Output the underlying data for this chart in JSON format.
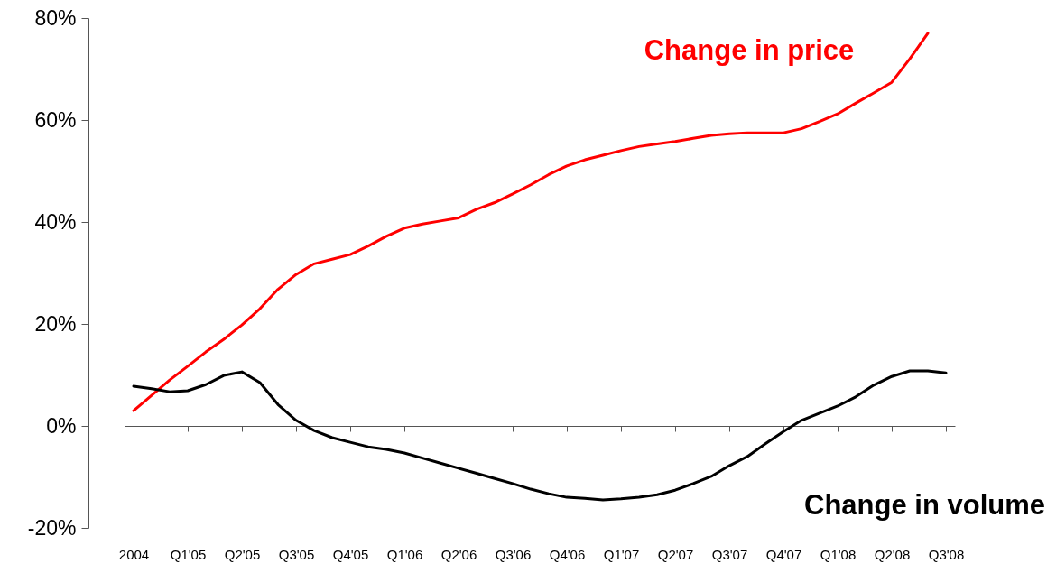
{
  "chart_data": {
    "type": "line",
    "categories": [
      "2004",
      null,
      null,
      "Q1'05",
      null,
      null,
      "Q2'05",
      null,
      null,
      "Q3'05",
      null,
      null,
      "Q4'05",
      null,
      null,
      "Q1'06",
      null,
      null,
      "Q2'06",
      null,
      null,
      "Q3'06",
      null,
      null,
      "Q4'06",
      null,
      null,
      "Q1'07",
      null,
      null,
      "Q2'07",
      null,
      null,
      "Q3'07",
      null,
      null,
      "Q4'07",
      null,
      null,
      "Q1'08",
      null,
      null,
      "Q2'08",
      null,
      null,
      "Q3'08"
    ],
    "series": [
      {
        "name": "Change in price",
        "color": "#ff0000",
        "values": [
          3,
          6,
          9,
          11.7,
          14.5,
          17,
          19.8,
          23,
          26.8,
          29.7,
          31.8,
          32.7,
          33.6,
          35.3,
          37.2,
          38.8,
          39.6,
          40.2,
          40.8,
          42.5,
          43.8,
          45.5,
          47.3,
          49.3,
          51,
          52.2,
          53.1,
          54,
          54.8,
          55.3,
          55.8,
          56.4,
          57,
          57.3,
          57.5,
          57.5,
          57.5,
          58.3,
          59.7,
          61.2,
          63.3,
          65.3,
          67.4,
          72,
          77,
          null
        ]
      },
      {
        "name": "Change in volume",
        "color": "#000000",
        "values": [
          7.8,
          7.3,
          6.7,
          6.9,
          8.1,
          9.9,
          10.6,
          8.5,
          4.2,
          1.1,
          -0.9,
          -2.3,
          -3.2,
          -4.1,
          -4.6,
          -5.3,
          -6.3,
          -7.3,
          -8.3,
          -9.3,
          -10.3,
          -11.3,
          -12.4,
          -13.3,
          -14,
          -14.2,
          -14.5,
          -14.3,
          -14,
          -13.5,
          -12.6,
          -11.3,
          -9.9,
          -7.8,
          -6,
          -3.5,
          -1.1,
          1.1,
          2.5,
          3.9,
          5.7,
          8,
          9.7,
          10.8,
          10.8,
          10.4
        ]
      }
    ],
    "ylim": [
      -20,
      80
    ],
    "yticks": [
      {
        "value": -20,
        "label": "-20%"
      },
      {
        "value": 0,
        "label": "0%"
      },
      {
        "value": 20,
        "label": "20%"
      },
      {
        "value": 40,
        "label": "40%"
      },
      {
        "value": 60,
        "label": "60%"
      },
      {
        "value": 80,
        "label": "80%"
      }
    ]
  }
}
